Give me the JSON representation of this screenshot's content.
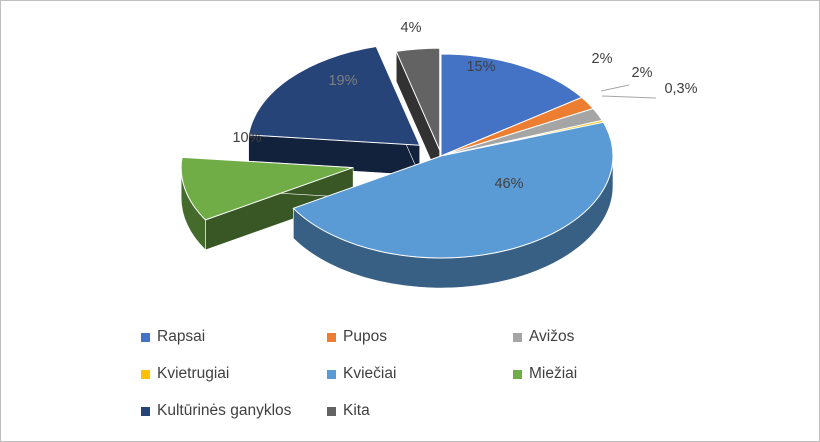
{
  "chart_data": {
    "type": "pie",
    "style": "3d-exploded",
    "title": "",
    "legend_position": "bottom",
    "slices": [
      {
        "name": "Rapsai",
        "value": 15,
        "label": "15%",
        "color": "#4472C4"
      },
      {
        "name": "Pupos",
        "value": 2,
        "label": "2%",
        "color": "#ED7D31"
      },
      {
        "name": "Avižos",
        "value": 2,
        "label": "2%",
        "color": "#A5A5A5"
      },
      {
        "name": "Kvietrugiai",
        "value": 0.3,
        "label": "0,3%",
        "color": "#FFC000"
      },
      {
        "name": "Kviečiai",
        "value": 46,
        "label": "46%",
        "color": "#5B9BD5"
      },
      {
        "name": "Miežiai",
        "value": 10,
        "label": "10%",
        "color": "#70AD47"
      },
      {
        "name": "Kultūrinės ganyklos",
        "value": 19,
        "label": "19%",
        "color": "#264478"
      },
      {
        "name": "Kita",
        "value": 4,
        "label": "4%",
        "color": "#636363"
      }
    ]
  }
}
